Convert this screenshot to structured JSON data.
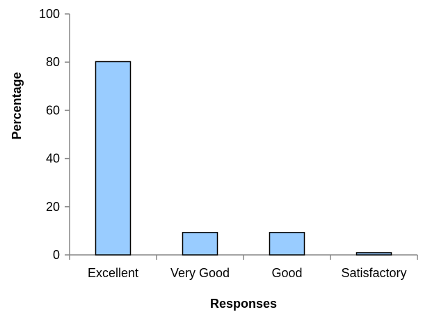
{
  "chart_data": {
    "type": "bar",
    "categories": [
      "Excellent",
      "Very Good",
      "Good",
      "Satisfactory"
    ],
    "values": [
      80.2,
      9.3,
      9.3,
      0.9
    ],
    "xlabel": "Responses",
    "ylabel": "Percentage",
    "ylim": [
      0,
      100
    ],
    "yticks": [
      0,
      20,
      40,
      60,
      80,
      100
    ],
    "ytick_labels": [
      "0",
      "20",
      "40",
      "60",
      "80",
      "100"
    ],
    "grid": false,
    "legend": "none",
    "bar_color": "#99ccff",
    "bar_edge_color": "#000000",
    "axis_color": "#868686"
  }
}
